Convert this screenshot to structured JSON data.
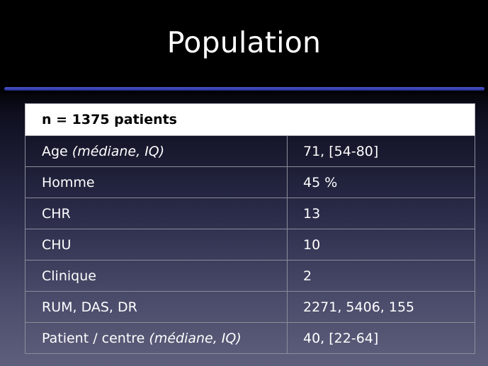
{
  "slide": {
    "title": "Population"
  },
  "table": {
    "header": "n = 1375 patients",
    "rows": [
      {
        "label": "Age",
        "label_note": "(médiane, IQ)",
        "value": "71, [54-80]"
      },
      {
        "label": "Homme",
        "label_note": "",
        "value": "45 %"
      },
      {
        "label": "CHR",
        "label_note": "",
        "value": "13"
      },
      {
        "label": "CHU",
        "label_note": "",
        "value": "10"
      },
      {
        "label": "Clinique",
        "label_note": "",
        "value": "2"
      },
      {
        "label": "RUM, DAS, DR",
        "label_note": "",
        "value": "2271, 5406, 155"
      },
      {
        "label": "Patient / centre",
        "label_note": "(médiane, IQ)",
        "value": "40, [22-64]"
      }
    ]
  },
  "colors": {
    "title_rule": "#3640ae",
    "header_background": "#ffffff",
    "grid_line": "#8d8d9b"
  }
}
